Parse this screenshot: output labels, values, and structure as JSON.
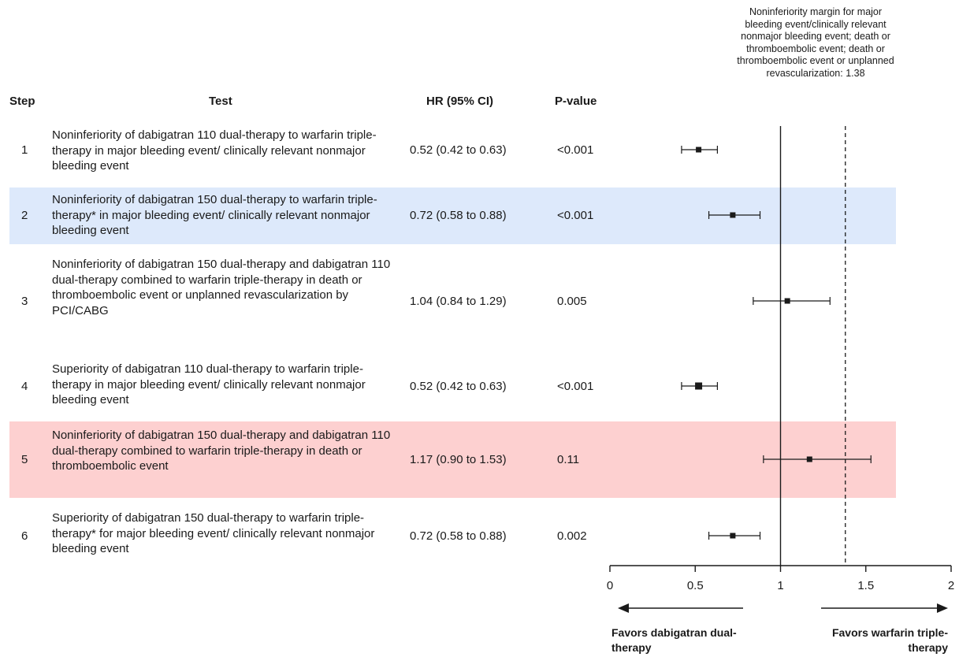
{
  "headers": {
    "step": "Step",
    "test": "Test",
    "hr": "HR (95% CI)",
    "p": "P-value"
  },
  "margin_note": "Noninferiority margin for major bleeding event/clinically relevant nonmajor bleeding event; death or thromboembolic event; death or thromboembolic event or unplanned revascularization: 1.38",
  "rows": [
    {
      "step": "1",
      "test": "Noninferiority of dabigatran 110 dual-therapy to warfarin triple-therapy in major bleeding event/ clinically relevant nonmajor bleeding event",
      "hr": "0.52 (0.42 to 0.63)",
      "p": "<0.001"
    },
    {
      "step": "2",
      "test": "Noninferiority of dabigatran 150 dual-therapy to warfarin triple-therapy* in major bleeding event/ clinically relevant nonmajor bleeding event",
      "hr": "0.72 (0.58 to 0.88)",
      "p": "<0.001"
    },
    {
      "step": "3",
      "test": "Noninferiority of dabigatran 150 dual-therapy and dabigatran 110 dual-therapy combined to warfarin triple-therapy in death or thromboembolic event or unplanned revascularization by PCI/CABG",
      "hr": "1.04 (0.84 to 1.29)",
      "p": "0.005"
    },
    {
      "step": "4",
      "test": "Superiority of dabigatran 110 dual-therapy to warfarin triple-therapy in major bleeding event/ clinically relevant nonmajor bleeding event",
      "hr": "0.52 (0.42 to 0.63)",
      "p": "<0.001"
    },
    {
      "step": "5",
      "test": "Noninferiority of dabigatran 150 dual-therapy and dabigatran 110 dual-therapy combined to warfarin triple-therapy in death or thromboembolic event",
      "hr": "1.17 (0.90 to 1.53)",
      "p": "0.11"
    },
    {
      "step": "6",
      "test": "Superiority of dabigatran 150 dual-therapy to warfarin triple-therapy* for major bleeding event/ clinically relevant nonmajor bleeding event",
      "hr": "0.72 (0.58 to 0.88)",
      "p": "0.002"
    }
  ],
  "favors": {
    "left": "Favors dabigatran dual-therapy",
    "right": "Favors warfarin triple-therapy"
  },
  "colors": {
    "highlight_blue": "#dde9fb",
    "highlight_red": "#fdd0d0",
    "ink": "#1a1a1a"
  },
  "chart_data": {
    "type": "forest",
    "x_ticks": [
      "0",
      "0.5",
      "1",
      "1.5",
      "2"
    ],
    "xlim": [
      0,
      2
    ],
    "reference_line": 1,
    "noninferiority_margin": 1.38,
    "points": [
      {
        "step": "1",
        "hr": 0.52,
        "lo": 0.42,
        "hi": 0.63
      },
      {
        "step": "2",
        "hr": 0.72,
        "lo": 0.58,
        "hi": 0.88
      },
      {
        "step": "3",
        "hr": 1.04,
        "lo": 0.84,
        "hi": 1.29
      },
      {
        "step": "4",
        "hr": 0.52,
        "lo": 0.42,
        "hi": 0.63
      },
      {
        "step": "5",
        "hr": 1.17,
        "lo": 0.9,
        "hi": 1.53
      },
      {
        "step": "6",
        "hr": 0.72,
        "lo": 0.58,
        "hi": 0.88
      }
    ],
    "highlighted_rows": {
      "2": "blue",
      "5": "red"
    }
  }
}
